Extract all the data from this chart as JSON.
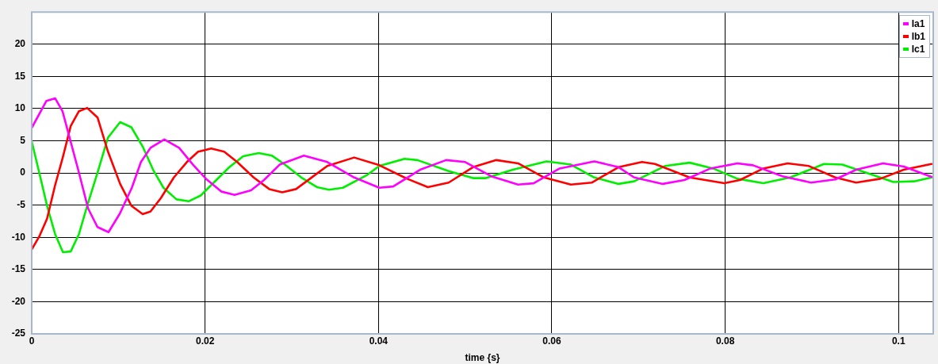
{
  "chart_data": {
    "type": "line",
    "xlabel": "time {s}",
    "xlim": [
      0,
      0.104
    ],
    "xticks": [
      0,
      0.02,
      0.04,
      0.06,
      0.08,
      0.1
    ],
    "ylim": [
      -25,
      25
    ],
    "yticks": [
      -25,
      -20,
      -15,
      -10,
      -5,
      0,
      5,
      10,
      15,
      20
    ],
    "grid": true,
    "legend": "top right",
    "marker": "none",
    "line_style": "solid",
    "series": [
      {
        "name": "Ia1",
        "color": "#ff00ff",
        "x": [
          0,
          0.0017,
          0.0027,
          0.00355,
          0.00544,
          0.0065,
          0.00758,
          0.00886,
          0.01017,
          0.01155,
          0.0126,
          0.0137,
          0.0153,
          0.017,
          0.0186,
          0.0201,
          0.0219,
          0.0234,
          0.0253,
          0.0268,
          0.0286,
          0.0314,
          0.0341,
          0.0372,
          0.0401,
          0.0417,
          0.0448,
          0.0478,
          0.05,
          0.053,
          0.0561,
          0.0579,
          0.0609,
          0.0649,
          0.0677,
          0.0695,
          0.0728,
          0.0753,
          0.0783,
          0.0814,
          0.0832,
          0.0866,
          0.0899,
          0.0927,
          0.0951,
          0.0982,
          0.1006,
          0.1038
        ],
        "values": [
          7.0,
          11.2,
          11.6,
          9.6,
          0.1,
          -5.5,
          -8.4,
          -9.2,
          -6.3,
          -2.3,
          1.7,
          3.9,
          5.2,
          3.9,
          1.3,
          -0.9,
          -2.9,
          -3.4,
          -2.7,
          -1.1,
          1.3,
          2.7,
          1.7,
          -0.7,
          -2.3,
          -2.1,
          0.5,
          2.0,
          1.7,
          -0.5,
          -1.8,
          -1.6,
          0.7,
          1.8,
          0.9,
          -0.7,
          -1.7,
          -1.1,
          0.7,
          1.5,
          1.2,
          -0.5,
          -1.5,
          -1.0,
          0.5,
          1.5,
          1.0,
          -0.6
        ]
      },
      {
        "name": "Ib1",
        "color": "#ff0000",
        "x": [
          0,
          0.00086,
          0.00177,
          0.0027,
          0.0036,
          0.0045,
          0.00545,
          0.0064,
          0.0076,
          0.0088,
          0.0102,
          0.0115,
          0.0128,
          0.0137,
          0.0149,
          0.0164,
          0.0179,
          0.0192,
          0.0207,
          0.0222,
          0.0237,
          0.0256,
          0.0274,
          0.0289,
          0.0305,
          0.0329,
          0.0341,
          0.0372,
          0.0401,
          0.0433,
          0.0457,
          0.0481,
          0.0509,
          0.0536,
          0.0561,
          0.0591,
          0.0622,
          0.0646,
          0.0677,
          0.0704,
          0.0719,
          0.0759,
          0.0799,
          0.0817,
          0.0844,
          0.0872,
          0.0896,
          0.0927,
          0.0951,
          0.0979,
          0.1006,
          0.1038
        ],
        "values": [
          -11.9,
          -9.9,
          -7.1,
          -1.9,
          2.5,
          7.3,
          9.6,
          10.1,
          8.6,
          3.3,
          -1.7,
          -5.1,
          -6.4,
          -6.0,
          -3.9,
          -0.7,
          1.7,
          3.3,
          3.8,
          3.3,
          1.7,
          -0.7,
          -2.5,
          -3.0,
          -2.5,
          -0.1,
          1.1,
          2.4,
          1.2,
          -0.9,
          -2.2,
          -1.5,
          0.9,
          2.0,
          1.5,
          -0.7,
          -1.8,
          -1.5,
          0.9,
          1.7,
          1.4,
          -0.7,
          -1.6,
          -1.1,
          0.7,
          1.5,
          1.1,
          -0.7,
          -1.5,
          -0.9,
          0.5,
          1.4
        ]
      },
      {
        "name": "Ic1",
        "color": "#00ee00",
        "x": [
          0,
          0.00086,
          0.00177,
          0.0027,
          0.0036,
          0.0045,
          0.00545,
          0.0064,
          0.0076,
          0.0088,
          0.0102,
          0.0115,
          0.0128,
          0.014,
          0.0152,
          0.0167,
          0.0181,
          0.0195,
          0.021,
          0.0228,
          0.0244,
          0.0262,
          0.0277,
          0.0292,
          0.0311,
          0.0329,
          0.0343,
          0.0359,
          0.0387,
          0.0401,
          0.043,
          0.0445,
          0.0481,
          0.0509,
          0.0524,
          0.0555,
          0.0594,
          0.0622,
          0.0649,
          0.0677,
          0.0695,
          0.0731,
          0.0759,
          0.0786,
          0.0814,
          0.0844,
          0.0875,
          0.0914,
          0.0935,
          0.0966,
          0.0994,
          0.1018,
          0.1038
        ],
        "values": [
          4.9,
          0.1,
          -5.1,
          -9.5,
          -12.3,
          -12.2,
          -9.5,
          -5.1,
          0.1,
          5.5,
          7.9,
          7.1,
          4.1,
          0.5,
          -2.3,
          -4.1,
          -4.4,
          -3.5,
          -1.5,
          0.9,
          2.6,
          3.1,
          2.7,
          1.3,
          -0.7,
          -2.2,
          -2.6,
          -2.3,
          -0.3,
          1.1,
          2.2,
          2.0,
          0.3,
          -0.8,
          -0.8,
          0.5,
          1.8,
          1.3,
          -0.7,
          -1.7,
          -1.3,
          1.1,
          1.6,
          0.7,
          -0.9,
          -1.6,
          -0.7,
          1.4,
          1.3,
          -0.1,
          -1.4,
          -1.3,
          -0.7
        ]
      }
    ]
  }
}
